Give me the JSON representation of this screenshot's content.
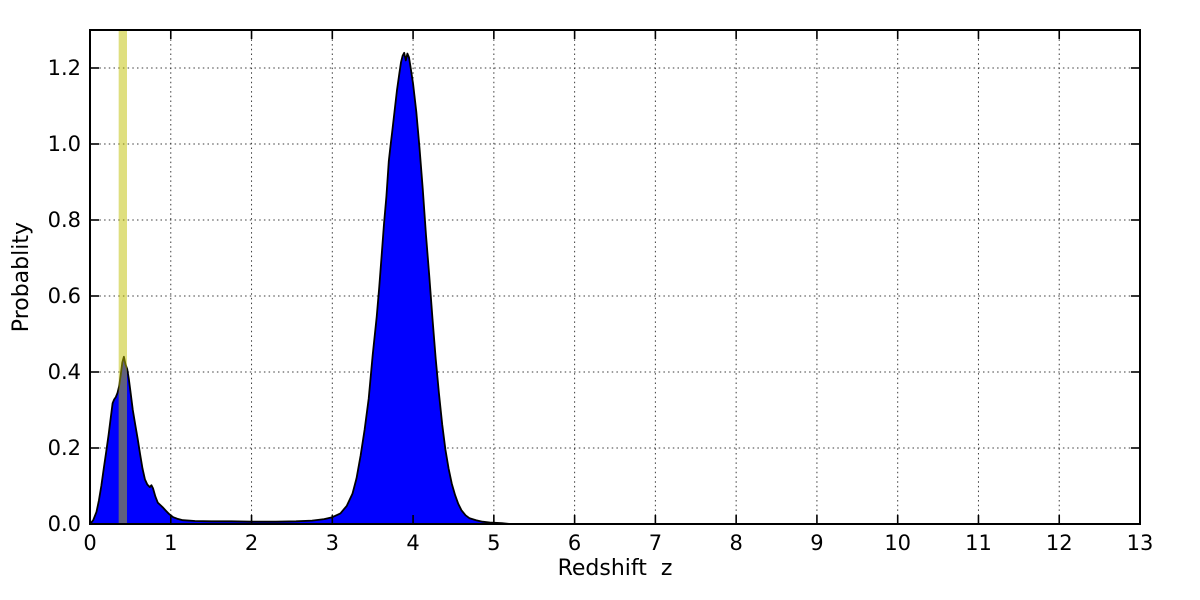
{
  "figure": {
    "background_color": "#ffffff",
    "frame_color": "#000000"
  },
  "chart_data": {
    "type": "area",
    "title": "",
    "xlabel": "Redshift  z",
    "ylabel": "Probablity",
    "xlim": [
      0,
      13
    ],
    "ylim": [
      0,
      1.3
    ],
    "xticks": [
      0,
      1,
      2,
      3,
      4,
      5,
      6,
      7,
      8,
      9,
      10,
      11,
      12,
      13
    ],
    "xtick_labels": [
      "0",
      "1",
      "2",
      "3",
      "4",
      "5",
      "6",
      "7",
      "8",
      "9",
      "10",
      "11",
      "12",
      "13"
    ],
    "yticks": [
      0.0,
      0.2,
      0.4,
      0.6,
      0.8,
      1.0,
      1.2
    ],
    "ytick_labels": [
      "0.0",
      "0.2",
      "0.4",
      "0.6",
      "0.8",
      "1.0",
      "1.2"
    ],
    "grid": {
      "on": true,
      "style": "dotted",
      "color": "#1a1a1a"
    },
    "legend": {
      "visible": false
    },
    "peaks": [
      {
        "z": 0.42,
        "probability": 0.44,
        "note": "low-redshift solution under yellow band"
      },
      {
        "z": 3.89,
        "probability": 1.24,
        "note": "main high-redshift solution"
      }
    ],
    "highlight_band": {
      "name": "redshift-marker-band",
      "x0": 0.355,
      "x1": 0.458,
      "color": "#bfbf00",
      "opacity": 0.5
    },
    "series": [
      {
        "name": "redshift-probability-pdf",
        "fill_color": "#0000ff",
        "line_color": "#000000",
        "line_width": 1.8,
        "points": [
          [
            0.0,
            0.0
          ],
          [
            0.04,
            0.01
          ],
          [
            0.08,
            0.032
          ],
          [
            0.11,
            0.062
          ],
          [
            0.14,
            0.1
          ],
          [
            0.17,
            0.145
          ],
          [
            0.2,
            0.19
          ],
          [
            0.23,
            0.235
          ],
          [
            0.26,
            0.285
          ],
          [
            0.28,
            0.318
          ],
          [
            0.3,
            0.328
          ],
          [
            0.32,
            0.334
          ],
          [
            0.34,
            0.345
          ],
          [
            0.36,
            0.362
          ],
          [
            0.38,
            0.392
          ],
          [
            0.4,
            0.425
          ],
          [
            0.42,
            0.44
          ],
          [
            0.44,
            0.42
          ],
          [
            0.46,
            0.408
          ],
          [
            0.48,
            0.382
          ],
          [
            0.5,
            0.35
          ],
          [
            0.53,
            0.3
          ],
          [
            0.56,
            0.262
          ],
          [
            0.59,
            0.224
          ],
          [
            0.62,
            0.184
          ],
          [
            0.65,
            0.146
          ],
          [
            0.68,
            0.118
          ],
          [
            0.71,
            0.104
          ],
          [
            0.74,
            0.097
          ],
          [
            0.76,
            0.102
          ],
          [
            0.78,
            0.094
          ],
          [
            0.81,
            0.072
          ],
          [
            0.84,
            0.056
          ],
          [
            0.87,
            0.05
          ],
          [
            0.9,
            0.044
          ],
          [
            0.94,
            0.035
          ],
          [
            0.98,
            0.026
          ],
          [
            1.03,
            0.018
          ],
          [
            1.08,
            0.014
          ],
          [
            1.15,
            0.01
          ],
          [
            1.3,
            0.008
          ],
          [
            1.5,
            0.007
          ],
          [
            1.75,
            0.007
          ],
          [
            2.0,
            0.006
          ],
          [
            2.3,
            0.006
          ],
          [
            2.55,
            0.007
          ],
          [
            2.75,
            0.009
          ],
          [
            2.9,
            0.013
          ],
          [
            3.0,
            0.018
          ],
          [
            3.1,
            0.028
          ],
          [
            3.18,
            0.048
          ],
          [
            3.25,
            0.08
          ],
          [
            3.3,
            0.12
          ],
          [
            3.35,
            0.18
          ],
          [
            3.4,
            0.248
          ],
          [
            3.45,
            0.33
          ],
          [
            3.5,
            0.445
          ],
          [
            3.55,
            0.545
          ],
          [
            3.58,
            0.622
          ],
          [
            3.61,
            0.705
          ],
          [
            3.64,
            0.79
          ],
          [
            3.67,
            0.862
          ],
          [
            3.7,
            0.955
          ],
          [
            3.72,
            0.995
          ],
          [
            3.74,
            1.03
          ],
          [
            3.77,
            1.085
          ],
          [
            3.8,
            1.14
          ],
          [
            3.83,
            1.185
          ],
          [
            3.85,
            1.215
          ],
          [
            3.87,
            1.232
          ],
          [
            3.89,
            1.24
          ],
          [
            3.91,
            1.22
          ],
          [
            3.93,
            1.238
          ],
          [
            3.95,
            1.228
          ],
          [
            3.97,
            1.2
          ],
          [
            4.0,
            1.158
          ],
          [
            4.04,
            1.085
          ],
          [
            4.08,
            0.99
          ],
          [
            4.12,
            0.88
          ],
          [
            4.16,
            0.76
          ],
          [
            4.2,
            0.655
          ],
          [
            4.24,
            0.54
          ],
          [
            4.28,
            0.435
          ],
          [
            4.32,
            0.345
          ],
          [
            4.36,
            0.262
          ],
          [
            4.4,
            0.196
          ],
          [
            4.44,
            0.146
          ],
          [
            4.48,
            0.106
          ],
          [
            4.52,
            0.076
          ],
          [
            4.56,
            0.053
          ],
          [
            4.6,
            0.036
          ],
          [
            4.65,
            0.023
          ],
          [
            4.7,
            0.015
          ],
          [
            4.78,
            0.01
          ],
          [
            4.86,
            0.006
          ],
          [
            4.95,
            0.004
          ],
          [
            5.1,
            0.002
          ],
          [
            5.2,
            0.0
          ]
        ]
      }
    ]
  }
}
